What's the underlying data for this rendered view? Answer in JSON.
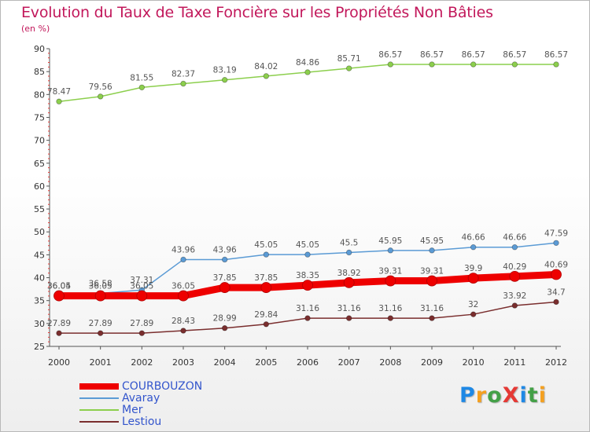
{
  "header": {
    "title": "Evolution du Taux de Taxe Foncière sur les Propriétés Non Bâties",
    "unit": "(en %)"
  },
  "logo": {
    "text": "Proxiti",
    "letters": [
      {
        "ch": "P",
        "color": "#1e88e5"
      },
      {
        "ch": "r",
        "color": "#f4a020"
      },
      {
        "ch": "o",
        "color": "#43a047"
      },
      {
        "ch": "X",
        "color": "#e53935"
      },
      {
        "ch": "i",
        "color": "#1e88e5"
      },
      {
        "ch": "t",
        "color": "#43a047"
      },
      {
        "ch": "i",
        "color": "#f4a020"
      }
    ]
  },
  "chart_data": {
    "type": "line",
    "title": "Evolution du Taux de Taxe Foncière sur les Propriétés Non Bâties",
    "ylabel": "(en %)",
    "xlabel": "",
    "ylim": [
      25,
      90
    ],
    "yticks": [
      25,
      30,
      35,
      40,
      45,
      50,
      55,
      60,
      65,
      70,
      75,
      80,
      85,
      90
    ],
    "grid": false,
    "legend_position": "bottom-left",
    "categories": [
      "2000",
      "2001",
      "2002",
      "2003",
      "2004",
      "2005",
      "2006",
      "2007",
      "2008",
      "2009",
      "2010",
      "2011",
      "2012"
    ],
    "series": [
      {
        "name": "COURBOUZON",
        "color": "#ee0000",
        "emphasis": true,
        "values": [
          36.05,
          36.05,
          36.05,
          36.05,
          37.85,
          37.85,
          38.35,
          38.92,
          39.31,
          39.31,
          39.9,
          40.29,
          40.69
        ],
        "labels": [
          "36.05",
          "36.05",
          "36.05",
          "36.05",
          "37.85",
          "37.85",
          "38.35",
          "38.92",
          "39.31",
          "39.31",
          "39.9",
          "40.29",
          "40.69"
        ]
      },
      {
        "name": "Avaray",
        "color": "#5b9bd5",
        "emphasis": false,
        "values": [
          36.04,
          36.58,
          37.31,
          43.96,
          43.96,
          45.05,
          45.05,
          45.5,
          45.95,
          45.95,
          46.66,
          46.66,
          47.59
        ],
        "labels": [
          "36.04",
          "36.58",
          "37.31",
          "43.96",
          "43.96",
          "45.05",
          "45.05",
          "45.5",
          "45.95",
          "45.95",
          "46.66",
          "46.66",
          "47.59"
        ]
      },
      {
        "name": "Mer",
        "color": "#8ccf4d",
        "emphasis": false,
        "values": [
          78.47,
          79.56,
          81.55,
          82.37,
          83.19,
          84.02,
          84.86,
          85.71,
          86.57,
          86.57,
          86.57,
          86.57,
          86.57
        ],
        "labels": [
          "78.47",
          "79.56",
          "81.55",
          "82.37",
          "83.19",
          "84.02",
          "84.86",
          "85.71",
          "86.57",
          "86.57",
          "86.57",
          "86.57",
          "86.57"
        ]
      },
      {
        "name": "Lestiou",
        "color": "#7a2e2e",
        "emphasis": false,
        "values": [
          27.89,
          27.89,
          27.89,
          28.43,
          28.99,
          29.84,
          31.16,
          31.16,
          31.16,
          31.16,
          32,
          33.92,
          34.7
        ],
        "labels": [
          "27.89",
          "27.89",
          "27.89",
          "28.43",
          "28.99",
          "29.84",
          "31.16",
          "31.16",
          "31.16",
          "31.16",
          "32",
          "33.92",
          "34.7"
        ]
      }
    ]
  }
}
